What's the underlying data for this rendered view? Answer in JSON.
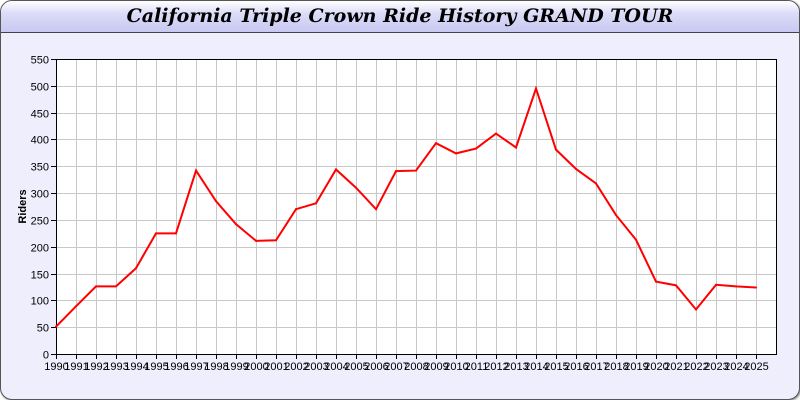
{
  "chart_data": {
    "type": "line",
    "title": "California Triple Crown Ride History GRAND TOUR",
    "xlabel": "",
    "ylabel": "Riders",
    "ylim": [
      0,
      550
    ],
    "yticks": [
      0,
      50,
      100,
      150,
      200,
      250,
      300,
      350,
      400,
      450,
      500,
      550
    ],
    "grid": true,
    "categories": [
      "1990",
      "1991",
      "1992",
      "1993",
      "1994",
      "1995",
      "1996",
      "1997",
      "1998",
      "1999",
      "2000",
      "2001",
      "2002",
      "2003",
      "2004",
      "2005",
      "2006",
      "2007",
      "2008",
      "2009",
      "2010",
      "2011",
      "2012",
      "2013",
      "2014",
      "2015",
      "2016",
      "2017",
      "2018",
      "2019",
      "2020",
      "2021",
      "2022",
      "2023",
      "2024",
      "2025"
    ],
    "series": [
      {
        "color": "#ff0000",
        "values": [
          51,
          89,
          126,
          126,
          160,
          225,
          225,
          342,
          285,
          242,
          211,
          212,
          270,
          281,
          344,
          310,
          270,
          341,
          342,
          393,
          374,
          383,
          411,
          385,
          495,
          381,
          345,
          318,
          259,
          213,
          135,
          128,
          83,
          129,
          126,
          124
        ]
      }
    ]
  }
}
